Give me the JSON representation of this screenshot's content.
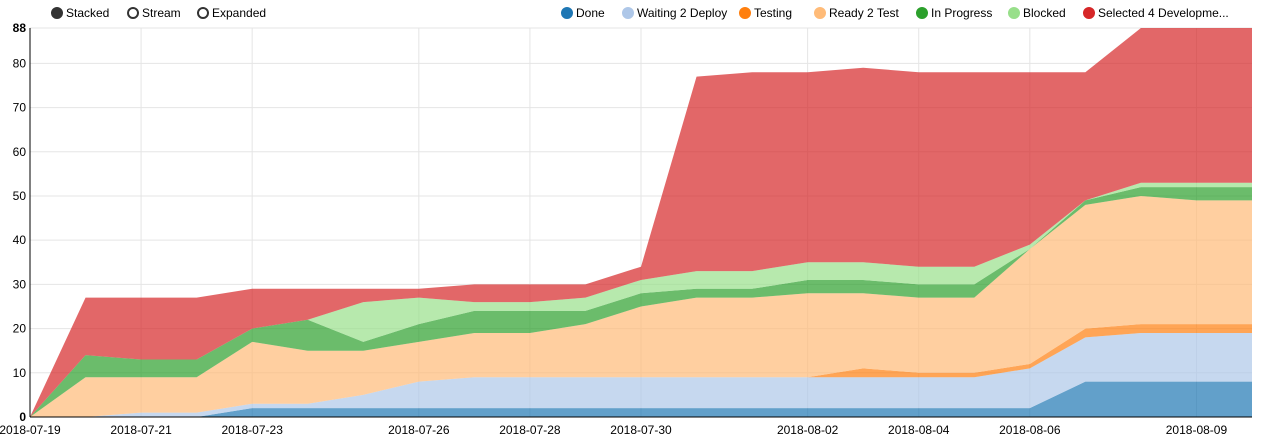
{
  "controls": [
    {
      "label": "Stacked",
      "selected": true
    },
    {
      "label": "Stream",
      "selected": false
    },
    {
      "label": "Expanded",
      "selected": false
    }
  ],
  "chart_data": {
    "type": "area",
    "stacked": true,
    "x": [
      "2018-07-19",
      "2018-07-20",
      "2018-07-21",
      "2018-07-22",
      "2018-07-23",
      "2018-07-24",
      "2018-07-25",
      "2018-07-26",
      "2018-07-27",
      "2018-07-28",
      "2018-07-29",
      "2018-07-30",
      "2018-07-31",
      "2018-08-01",
      "2018-08-02",
      "2018-08-03",
      "2018-08-04",
      "2018-08-05",
      "2018-08-06",
      "2018-08-07",
      "2018-08-08",
      "2018-08-09",
      "2018-08-10"
    ],
    "x_tick_labels": [
      "2018-07-19",
      "2018-07-21",
      "2018-07-23",
      "2018-07-26",
      "2018-07-28",
      "2018-07-30",
      "2018-08-02",
      "2018-08-04",
      "2018-08-06",
      "2018-08-09"
    ],
    "y_ticks": [
      0,
      10,
      20,
      30,
      40,
      50,
      60,
      70,
      80,
      88
    ],
    "ylim": [
      0,
      88
    ],
    "grid": true,
    "legend_position": "top-right",
    "series": [
      {
        "name": "Done",
        "color": "#1f77b4",
        "values": [
          0,
          0,
          0,
          0,
          2,
          2,
          2,
          2,
          2,
          2,
          2,
          2,
          2,
          2,
          2,
          2,
          2,
          2,
          2,
          8,
          8,
          8,
          8
        ]
      },
      {
        "name": "Waiting 2 Deploy",
        "color": "#aec7e8",
        "values": [
          0,
          0,
          1,
          1,
          1,
          1,
          3,
          6,
          7,
          7,
          7,
          7,
          7,
          7,
          7,
          7,
          7,
          7,
          9,
          10,
          11,
          11,
          11
        ]
      },
      {
        "name": "Testing",
        "color": "#ff7f0e",
        "values": [
          0,
          0,
          0,
          0,
          0,
          0,
          0,
          0,
          0,
          0,
          0,
          0,
          0,
          0,
          0,
          2,
          1,
          1,
          1,
          2,
          2,
          2,
          2
        ]
      },
      {
        "name": "Ready 2 Test",
        "color": "#ffbb78",
        "values": [
          0,
          9,
          8,
          8,
          14,
          12,
          10,
          9,
          10,
          10,
          12,
          16,
          18,
          18,
          19,
          17,
          17,
          17,
          26,
          28,
          29,
          28,
          28
        ]
      },
      {
        "name": "In Progress",
        "color": "#2ca02c",
        "values": [
          0,
          5,
          4,
          4,
          3,
          7,
          2,
          4,
          5,
          5,
          3,
          3,
          2,
          2,
          3,
          3,
          3,
          3,
          0,
          1,
          2,
          3,
          3
        ]
      },
      {
        "name": "Blocked",
        "color": "#98df8a",
        "values": [
          0,
          0,
          0,
          0,
          0,
          0,
          9,
          6,
          2,
          2,
          3,
          3,
          4,
          4,
          4,
          4,
          4,
          4,
          1,
          0,
          1,
          1,
          1
        ]
      },
      {
        "name": "Selected 4 Developme...",
        "color": "#d62728",
        "values": [
          0,
          13,
          14,
          14,
          9,
          7,
          3,
          2,
          4,
          4,
          3,
          3,
          44,
          45,
          43,
          44,
          44,
          44,
          39,
          29,
          35,
          35,
          35
        ]
      }
    ]
  }
}
